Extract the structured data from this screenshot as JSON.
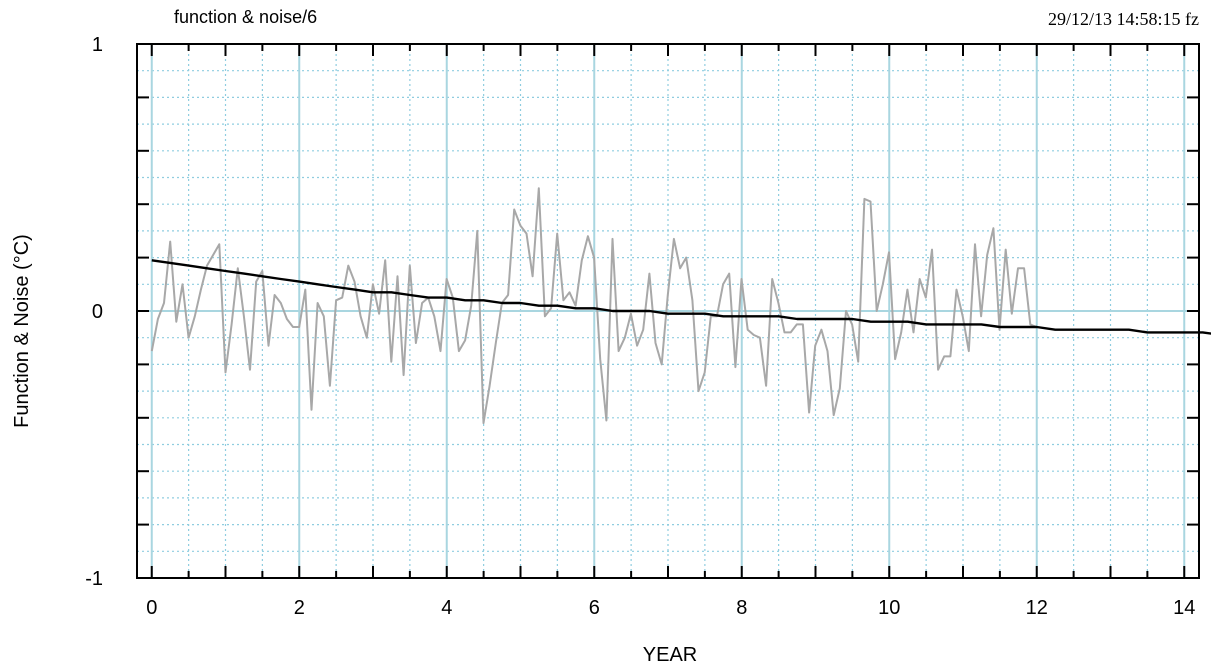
{
  "header": {
    "title": "function & noise/6",
    "timestamp": "29/12/13  14:58:15 fz"
  },
  "chart_data": {
    "type": "line",
    "xlabel": "YEAR",
    "ylabel": "Function & Noise (°C)",
    "xlim": [
      -0.2,
      14.2
    ],
    "ylim": [
      -1,
      1
    ],
    "x_ticks": [
      0,
      2,
      4,
      6,
      8,
      10,
      12,
      14
    ],
    "y_tick_labels": [
      {
        "value": 1,
        "label": "1"
      },
      {
        "value": 0,
        "label": "0"
      },
      {
        "value": -1,
        "label": "-1"
      }
    ],
    "grid": true,
    "colors": {
      "noise": "#a8a8a8",
      "function": "#000000",
      "grid_major": "#a9d6e0",
      "grid_minor": "#8fcde0"
    },
    "series": [
      {
        "role": "noise",
        "x_start": 0,
        "x_step": 0.0833,
        "values": [
          -0.15,
          -0.03,
          0.03,
          0.26,
          -0.04,
          0.1,
          -0.1,
          -0.02,
          0.08,
          0.17,
          0.21,
          0.25,
          -0.23,
          -0.05,
          0.16,
          -0.02,
          -0.22,
          0.11,
          0.15,
          -0.13,
          0.06,
          0.03,
          -0.03,
          -0.06,
          -0.06,
          0.08,
          -0.37,
          0.03,
          -0.02,
          -0.28,
          0.04,
          0.05,
          0.17,
          0.11,
          -0.02,
          -0.1,
          0.1,
          -0.01,
          0.19,
          -0.19,
          0.13,
          -0.24,
          0.17,
          -0.12,
          0.03,
          0.05,
          -0.02,
          -0.15,
          0.12,
          0.05,
          -0.15,
          -0.11,
          0.02,
          0.3,
          -0.42,
          -0.28,
          -0.12,
          0.03,
          0.06,
          0.38,
          0.32,
          0.29,
          0.13,
          0.46,
          -0.02,
          0.01,
          0.29,
          0.04,
          0.07,
          0.02,
          0.19,
          0.28,
          0.2,
          -0.18,
          -0.41,
          0.27,
          -0.15,
          -0.1,
          -0.01,
          -0.13,
          -0.07,
          0.14,
          -0.12,
          -0.2,
          0.06,
          0.27,
          0.16,
          0.2,
          0.04,
          -0.3,
          -0.23,
          -0.02,
          -0.02,
          0.1,
          0.14,
          -0.21,
          0.12,
          -0.07,
          -0.09,
          -0.1,
          -0.28,
          0.12,
          0.03,
          -0.08,
          -0.08,
          -0.05,
          -0.05,
          -0.38,
          -0.13,
          -0.07,
          -0.15,
          -0.39,
          -0.29,
          0.0,
          -0.05,
          -0.19,
          0.42,
          0.41,
          0.0,
          0.1,
          0.22,
          -0.18,
          -0.08,
          0.08,
          -0.08,
          0.12,
          0.05,
          0.23,
          -0.22,
          -0.17,
          -0.17,
          0.08,
          -0.02,
          -0.15,
          0.25,
          -0.02,
          0.21,
          0.31,
          -0.07,
          0.23,
          -0.01,
          0.16,
          0.16,
          -0.05,
          -0.06
        ]
      },
      {
        "role": "function",
        "x_start": 0,
        "x_step": 0.25,
        "values": [
          0.19,
          0.18,
          0.17,
          0.16,
          0.15,
          0.14,
          0.13,
          0.12,
          0.11,
          0.1,
          0.09,
          0.08,
          0.07,
          0.07,
          0.06,
          0.05,
          0.05,
          0.04,
          0.04,
          0.03,
          0.03,
          0.02,
          0.02,
          0.01,
          0.01,
          0.0,
          0.0,
          0.0,
          -0.01,
          -0.01,
          -0.01,
          -0.02,
          -0.02,
          -0.02,
          -0.02,
          -0.03,
          -0.03,
          -0.03,
          -0.03,
          -0.04,
          -0.04,
          -0.04,
          -0.05,
          -0.05,
          -0.05,
          -0.05,
          -0.06,
          -0.06,
          -0.06,
          -0.07,
          -0.07,
          -0.07,
          -0.07,
          -0.07,
          -0.08,
          -0.08,
          -0.08,
          -0.08,
          -0.09
        ]
      }
    ]
  }
}
